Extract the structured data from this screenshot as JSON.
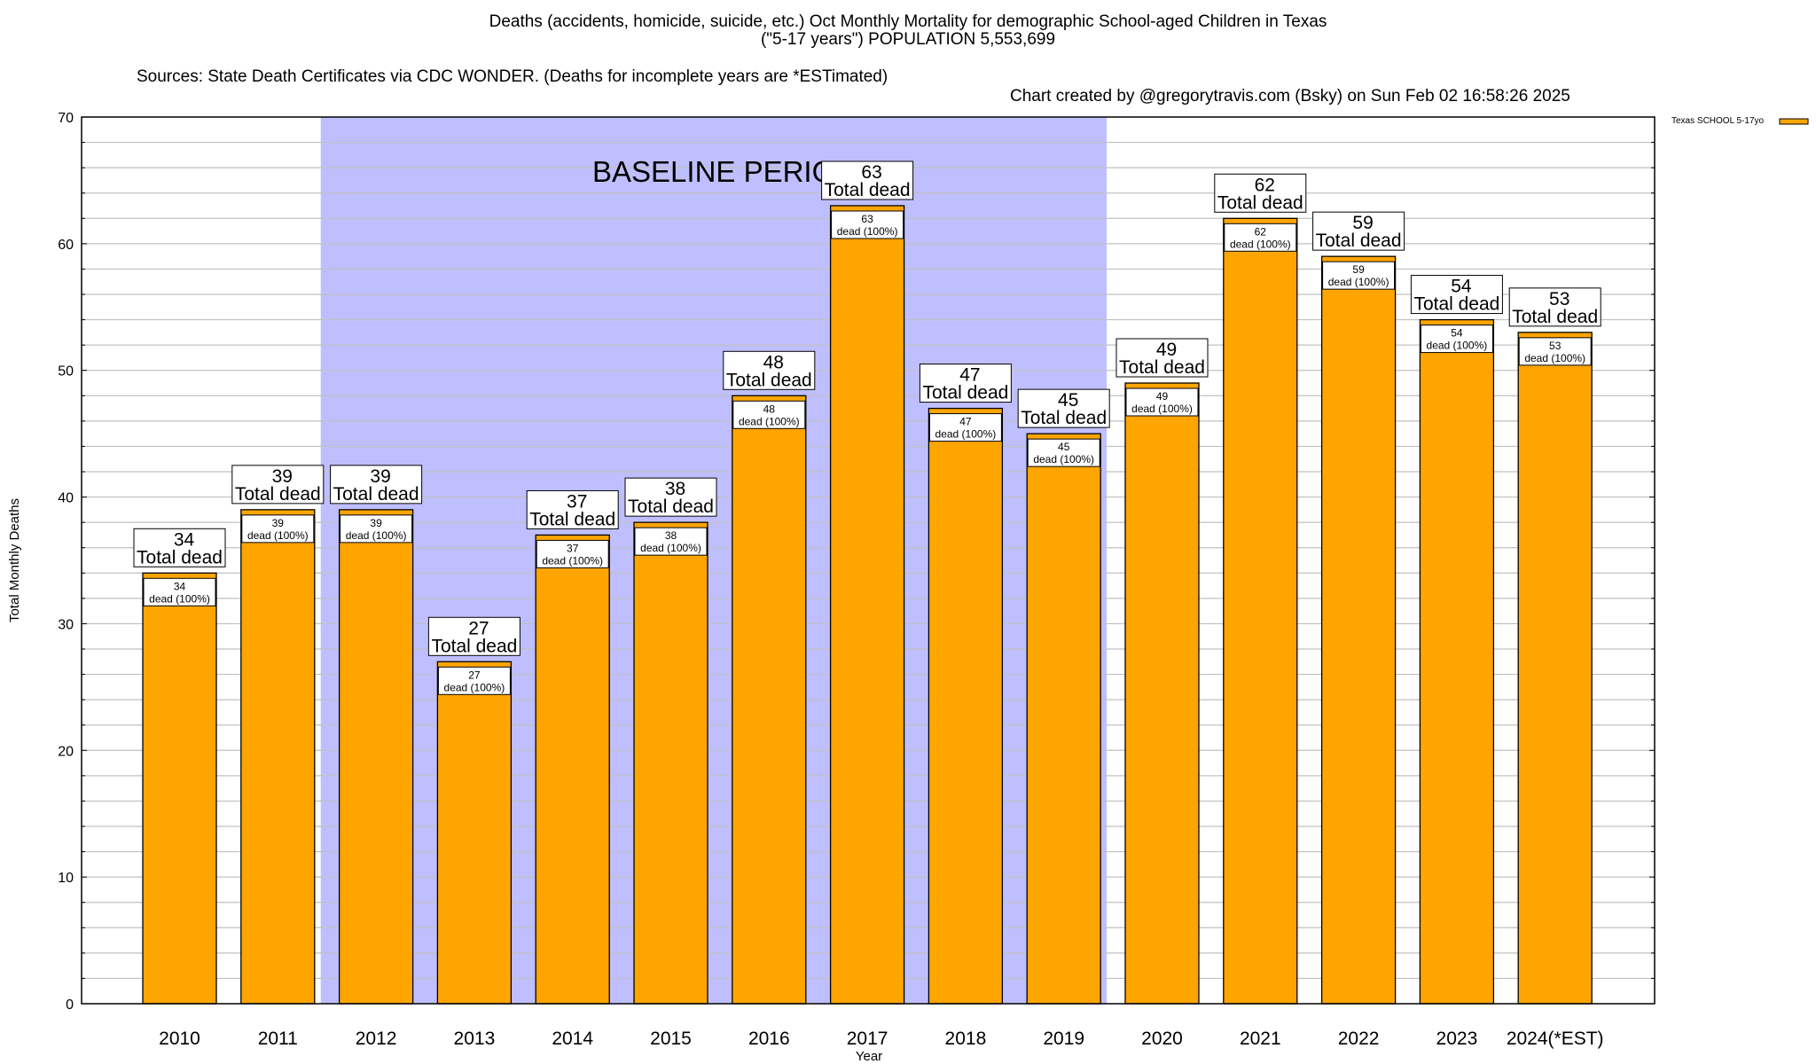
{
  "header": {
    "title_line1": "Deaths (accidents, homicide, suicide, etc.) Oct Monthly Mortality for demographic School-aged Children in Texas",
    "title_line2": "(\"5-17 years\") POPULATION 5,553,699",
    "sources": "Sources: State Death Certificates via CDC WONDER. (Deaths for incomplete years are *ESTimated)",
    "credit": "Chart created by @gregorytravis.com (Bsky) on Sun Feb 02 16:58:26 2025"
  },
  "colors": {
    "bar": "#ffa500",
    "baseline_shade": "#bfbfff",
    "grid": "#c0c0c0",
    "axis": "#000000"
  },
  "chart_data": {
    "type": "bar",
    "title": "Deaths (accidents, homicide, suicide, etc.) Oct Monthly Mortality for demographic School-aged Children in Texas",
    "xlabel": "Year",
    "ylabel": "Total Monthly Deaths",
    "ylim": [
      0,
      70
    ],
    "yticks": [
      0,
      10,
      20,
      30,
      40,
      50,
      60,
      70
    ],
    "ytick_labels": [
      "0",
      "10",
      "20",
      "30",
      "40",
      "50",
      "60",
      "70"
    ],
    "minor_grid_step": 2,
    "grid": true,
    "categories": [
      "2010",
      "2011",
      "2012",
      "2013",
      "2014",
      "2015",
      "2016",
      "2017",
      "2018",
      "2019",
      "2020",
      "2021",
      "2022",
      "2023",
      "2024(*EST)"
    ],
    "series": [
      {
        "name": "Texas SCHOOL 5-17yo",
        "values": [
          34,
          39,
          39,
          27,
          37,
          38,
          48,
          63,
          47,
          45,
          49,
          62,
          59,
          54,
          53
        ]
      }
    ],
    "total_label_suffix": "Total dead",
    "inner_label_suffix": "dead (100%)",
    "legend": {
      "entries": [
        "Texas SCHOOL 5-17yo"
      ],
      "position": "top-right"
    },
    "annotations": [
      {
        "text": "BASELINE PERIOD",
        "x_start_category": "2012",
        "x_end_category": "2019"
      }
    ]
  }
}
